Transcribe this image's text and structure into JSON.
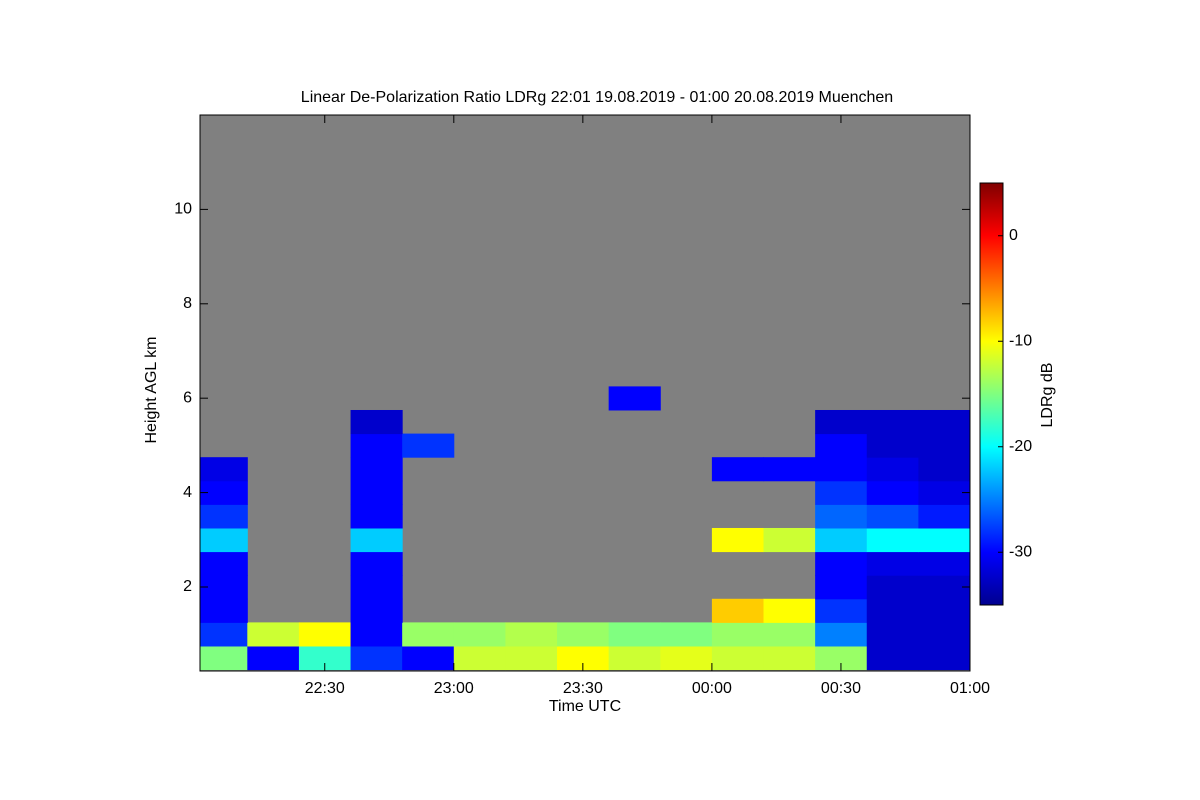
{
  "chart_data": {
    "type": "heatmap",
    "title": "Linear De-Polarization Ratio LDRg   22:01 19.08.2019 - 01:00 20.08.2019 Muenchen",
    "xlabel": "Time UTC",
    "ylabel": "Height AGL km",
    "colorbar_label": "LDRg dB",
    "background_color": "#808080",
    "xlim": [
      22.0167,
      25
    ],
    "xticks": [
      {
        "value": 22.5,
        "label": "22:30"
      },
      {
        "value": 23,
        "label": "23:00"
      },
      {
        "value": 23.5,
        "label": "23:30"
      },
      {
        "value": 24,
        "label": "00:00"
      },
      {
        "value": 24.5,
        "label": "00:30"
      },
      {
        "value": 25,
        "label": "01:00"
      }
    ],
    "ylim": [
      0.22,
      12
    ],
    "yticks": [
      2,
      4,
      6,
      8,
      10
    ],
    "zlim": [
      -35,
      5
    ],
    "zticks": [
      0,
      -10,
      -20,
      -30
    ],
    "x": [
      22.1,
      22.3,
      22.5,
      22.7,
      22.9,
      23.1,
      23.3,
      23.5,
      23.7,
      23.9,
      24.1,
      24.3,
      24.5,
      24.7,
      24.9
    ],
    "y": [
      0.5,
      1,
      1.5,
      2,
      2.5,
      3,
      3.5,
      4,
      4.5,
      5,
      5.5,
      6
    ],
    "z": [
      [
        -15,
        -30,
        -18,
        -28,
        -30,
        -12,
        -12,
        -10,
        -12,
        -11,
        -12,
        -12,
        -14,
        -32,
        -32
      ],
      [
        -28,
        -12,
        -10,
        -30,
        -14,
        -14,
        -13,
        -14,
        -15,
        -15,
        -14,
        -14,
        -25,
        -32,
        -32
      ],
      [
        -30,
        null,
        null,
        -30,
        null,
        null,
        null,
        null,
        null,
        null,
        -8,
        -10,
        -28,
        -32,
        -32
      ],
      [
        -30,
        null,
        null,
        -30,
        null,
        null,
        null,
        null,
        null,
        null,
        null,
        null,
        -30,
        -32,
        -32
      ],
      [
        -30,
        null,
        null,
        -30,
        null,
        null,
        null,
        null,
        null,
        null,
        null,
        null,
        -30,
        -31,
        -31
      ],
      [
        -22,
        null,
        null,
        -22,
        null,
        null,
        null,
        null,
        null,
        null,
        -10,
        -12,
        -22,
        -20,
        -20
      ],
      [
        -28,
        null,
        null,
        -30,
        null,
        null,
        null,
        null,
        null,
        null,
        null,
        null,
        -26,
        -27,
        -29
      ],
      [
        -30,
        null,
        null,
        -30,
        null,
        null,
        null,
        null,
        null,
        null,
        null,
        null,
        -28,
        -30,
        -31
      ],
      [
        -31,
        null,
        null,
        -30,
        null,
        null,
        null,
        null,
        null,
        null,
        -30,
        -30,
        -30,
        -31,
        -32
      ],
      [
        null,
        null,
        null,
        -30,
        -28,
        null,
        null,
        null,
        null,
        null,
        null,
        null,
        -30,
        -32,
        -32
      ],
      [
        null,
        null,
        null,
        -32,
        null,
        null,
        null,
        null,
        null,
        null,
        null,
        null,
        -32,
        -32,
        -32
      ],
      [
        null,
        null,
        null,
        null,
        null,
        null,
        null,
        null,
        -30,
        null,
        null,
        null,
        null,
        null,
        null
      ]
    ]
  }
}
